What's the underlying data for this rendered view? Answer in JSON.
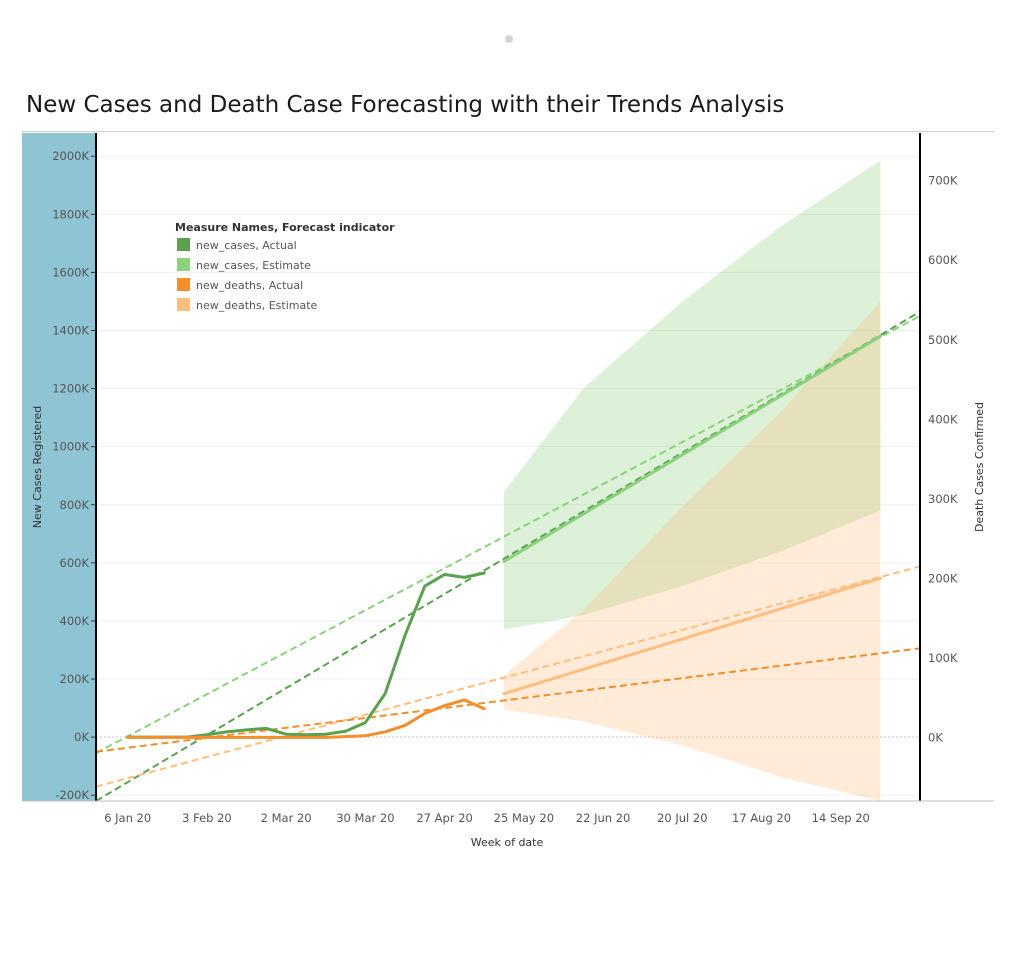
{
  "chart_data": {
    "type": "line",
    "title": "New Cases and Death Case Forecasting with their Trends Analysis",
    "xlabel": "Week of date",
    "ylabel_left": "New Cases Registered",
    "ylabel_right": "Death Cases Confirmed",
    "x_ticks": [
      "6 Jan 20",
      "3 Feb 20",
      "2 Mar 20",
      "30 Mar 20",
      "27 Apr 20",
      "25 May 20",
      "22 Jun 20",
      "20 Jul 20",
      "17 Aug 20",
      "14 Sep 20"
    ],
    "x_domain_weeks": [
      -1.6,
      40
    ],
    "y_left": {
      "ticks": [
        -200,
        0,
        200,
        400,
        600,
        800,
        1000,
        1200,
        1400,
        1600,
        1800,
        2000
      ],
      "tick_suffix": "K",
      "range": [
        -220,
        2080
      ]
    },
    "y_right": {
      "ticks": [
        0,
        100,
        200,
        300,
        400,
        500,
        600,
        700
      ],
      "tick_suffix": "K",
      "range": [
        -80,
        760
      ]
    },
    "grid": true,
    "legend": {
      "title": "Measure Names, Forecast indicator",
      "position": "top-left",
      "entries": [
        {
          "label": "new_cases, Actual",
          "color": "#59a14f"
        },
        {
          "label": "new_cases, Estimate",
          "color": "#8cd17d"
        },
        {
          "label": "new_deaths, Actual",
          "color": "#f28e2b"
        },
        {
          "label": "new_deaths, Estimate",
          "color": "#ffbe7d"
        }
      ]
    },
    "series": [
      {
        "name": "new_cases, Actual",
        "axis": "left",
        "color": "#59a14f",
        "x": [
          0,
          1,
          2,
          3,
          4,
          5,
          6,
          7,
          8,
          9,
          10,
          11,
          12,
          13,
          14,
          15,
          16,
          17
        ],
        "y": [
          0,
          0,
          0,
          0,
          8,
          18,
          25,
          30,
          10,
          8,
          10,
          20,
          50,
          150,
          350,
          520,
          560,
          550
        ]
      },
      {
        "name": "new_cases, Actual",
        "axis": "left",
        "color": "#59a14f",
        "x": [
          17,
          18
        ],
        "y": [
          550,
          565
        ]
      },
      {
        "name": "new_cases, Estimate",
        "axis": "left",
        "color": "#8cd17d",
        "x": [
          19,
          38
        ],
        "y": [
          605,
          1380
        ]
      },
      {
        "name": "new_deaths, Actual",
        "axis": "right",
        "color": "#f28e2b",
        "x": [
          0,
          1,
          2,
          3,
          4,
          5,
          6,
          7,
          8,
          9,
          10,
          11,
          12,
          13,
          14,
          15,
          16,
          17,
          18
        ],
        "y": [
          0,
          0,
          0,
          0,
          0,
          0,
          0,
          0,
          0,
          0,
          0,
          1,
          2,
          7,
          15,
          30,
          40,
          47,
          36
        ]
      },
      {
        "name": "new_deaths, Estimate",
        "axis": "right",
        "color": "#ffbe7d",
        "x": [
          19,
          38
        ],
        "y": [
          55,
          200
        ]
      }
    ],
    "forecast_bands": [
      {
        "series": "new_cases, Estimate",
        "axis": "left",
        "color": "#8cd17d",
        "x": [
          19,
          23,
          28,
          33,
          38
        ],
        "lower": [
          370,
          420,
          520,
          640,
          780
        ],
        "upper": [
          845,
          1200,
          1500,
          1760,
          1985
        ]
      },
      {
        "series": "new_deaths, Estimate",
        "axis": "right",
        "color": "#ffbe7d",
        "x": [
          19,
          23,
          28,
          33,
          38
        ],
        "lower": [
          35,
          20,
          -10,
          -50,
          -80
        ],
        "upper": [
          78,
          160,
          290,
          410,
          548
        ]
      }
    ],
    "trend_lines": [
      {
        "series": "new_cases, Estimate",
        "axis": "left",
        "color": "#8cd17d",
        "dashed": true,
        "x": [
          -1.6,
          40
        ],
        "y": [
          -55,
          1450
        ]
      },
      {
        "series": "new_cases, Actual",
        "axis": "left",
        "color": "#59a14f",
        "dashed": true,
        "x": [
          -1.6,
          40
        ],
        "y": [
          -220,
          1465
        ]
      },
      {
        "series": "new_deaths, Estimate",
        "axis": "right",
        "color": "#ffbe7d",
        "dashed": true,
        "x": [
          -1.6,
          40
        ],
        "y": [
          -62,
          215
        ]
      },
      {
        "series": "new_deaths, Actual",
        "axis": "right",
        "color": "#f28e2b",
        "dashed": true,
        "x": [
          -1.6,
          40
        ],
        "y": [
          -18,
          112
        ]
      }
    ]
  }
}
